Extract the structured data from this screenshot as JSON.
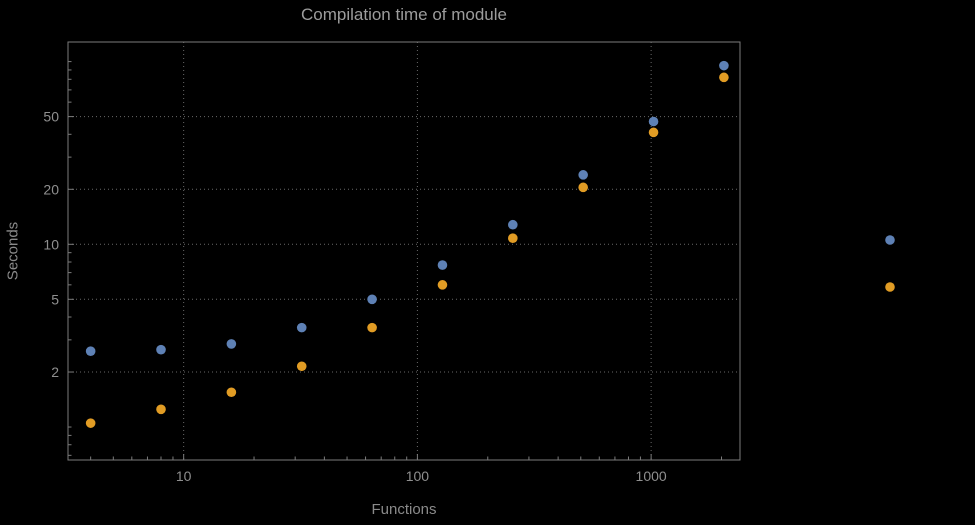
{
  "theme": {
    "background": "#000000",
    "frame": "#7c7c7c",
    "grid": "#696969",
    "tick_label": "#8f8f8f",
    "title_color": "#9c9c9c",
    "axis_label_color": "#8a8a8a"
  },
  "chart_data": {
    "type": "scatter",
    "title": "Compilation time of module",
    "xlabel": "Functions",
    "ylabel": "Seconds",
    "x_scale": "log",
    "y_scale": "log",
    "x_range": [
      3.2,
      2400
    ],
    "y_range": [
      0.66,
      128
    ],
    "grid": {
      "style": "dotted",
      "on": true
    },
    "legend": {
      "position": "right",
      "labels_visible": false
    },
    "x_ticks": [
      {
        "value": 10,
        "label": "10"
      },
      {
        "value": 100,
        "label": "100"
      },
      {
        "value": 1000,
        "label": "1000"
      }
    ],
    "x_minor_ticks": [
      4,
      5,
      6,
      7,
      8,
      9,
      20,
      30,
      40,
      50,
      60,
      70,
      80,
      90,
      200,
      300,
      400,
      500,
      600,
      700,
      800,
      900,
      2000
    ],
    "y_ticks": [
      {
        "value": 2,
        "label": "2"
      },
      {
        "value": 5,
        "label": "5"
      },
      {
        "value": 10,
        "label": "10"
      },
      {
        "value": 20,
        "label": "20"
      },
      {
        "value": 50,
        "label": "50"
      }
    ],
    "y_minor_ticks": [
      0.7,
      0.8,
      0.9,
      1,
      3,
      4,
      6,
      7,
      8,
      9,
      30,
      40,
      60,
      70,
      80,
      90,
      100
    ],
    "x": [
      4,
      8,
      16,
      32,
      64,
      128,
      256,
      512,
      1024,
      2048
    ],
    "series": [
      {
        "name": "series-1",
        "color": "#5E81B5",
        "values": [
          2.6,
          2.65,
          2.85,
          3.5,
          5.0,
          7.7,
          12.8,
          24,
          47,
          95
        ]
      },
      {
        "name": "series-2",
        "color": "#E19C24",
        "values": [
          1.05,
          1.25,
          1.55,
          2.15,
          3.5,
          6.0,
          10.8,
          20.5,
          41,
          82
        ]
      }
    ]
  }
}
